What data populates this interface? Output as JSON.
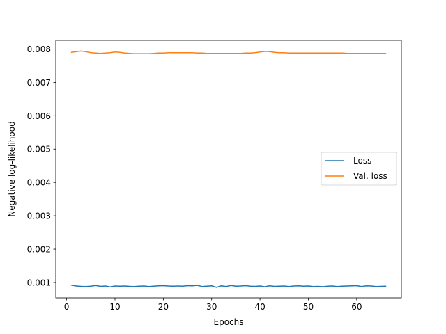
{
  "chart_data": {
    "type": "line",
    "xlabel": "Epochs",
    "ylabel": "Negative log-likelihood",
    "xlim": [
      -2.25,
      69.25
    ],
    "ylim": [
      0.00054,
      0.00826
    ],
    "x_ticks": [
      0,
      10,
      20,
      30,
      40,
      50,
      60
    ],
    "x_tick_labels": [
      "0",
      "10",
      "20",
      "30",
      "40",
      "50",
      "60"
    ],
    "y_ticks": [
      0.001,
      0.002,
      0.003,
      0.004,
      0.005,
      0.006,
      0.007,
      0.008
    ],
    "y_tick_labels": [
      "0.001",
      "0.002",
      "0.003",
      "0.004",
      "0.005",
      "0.006",
      "0.007",
      "0.008"
    ],
    "grid": false,
    "legend_position": "center-right",
    "x": [
      1,
      2,
      3,
      4,
      5,
      6,
      7,
      8,
      9,
      10,
      11,
      12,
      13,
      14,
      15,
      16,
      17,
      18,
      19,
      20,
      21,
      22,
      23,
      24,
      25,
      26,
      27,
      28,
      29,
      30,
      31,
      32,
      33,
      34,
      35,
      36,
      37,
      38,
      39,
      40,
      41,
      42,
      43,
      44,
      45,
      46,
      47,
      48,
      49,
      50,
      51,
      52,
      53,
      54,
      55,
      56,
      57,
      58,
      59,
      60,
      61,
      62,
      63,
      64,
      65,
      66
    ],
    "series": [
      {
        "name": "Loss",
        "color": "#1f77b4",
        "values": [
          0.00092,
          0.000895,
          0.000885,
          0.00088,
          0.00089,
          0.00091,
          0.000885,
          0.000895,
          0.00087,
          0.000895,
          0.00089,
          0.000895,
          0.000885,
          0.00088,
          0.00089,
          0.000895,
          0.00088,
          0.00089,
          0.0009,
          0.000905,
          0.000895,
          0.00089,
          0.000895,
          0.00089,
          0.000905,
          0.0009,
          0.000915,
          0.00088,
          0.00089,
          0.0009,
          0.000855,
          0.0009,
          0.00088,
          0.00091,
          0.00089,
          0.000895,
          0.000905,
          0.00089,
          0.000885,
          0.000895,
          0.000875,
          0.0009,
          0.000885,
          0.00089,
          0.000895,
          0.00088,
          0.000895,
          0.0009,
          0.00089,
          0.000895,
          0.00088,
          0.000885,
          0.000875,
          0.00089,
          0.000895,
          0.00088,
          0.00089,
          0.000895,
          0.0009,
          0.000905,
          0.00088,
          0.0009,
          0.000895,
          0.00088,
          0.000885,
          0.00089
        ]
      },
      {
        "name": "Val. loss",
        "color": "#ff7f0e",
        "values": [
          0.0079,
          0.00792,
          0.00794,
          0.00792,
          0.00789,
          0.00788,
          0.00787,
          0.00788,
          0.00789,
          0.00791,
          0.0079,
          0.00788,
          0.00787,
          0.00786,
          0.00786,
          0.00786,
          0.00786,
          0.00787,
          0.00788,
          0.00788,
          0.00789,
          0.00789,
          0.00789,
          0.00789,
          0.00789,
          0.00789,
          0.00788,
          0.00788,
          0.00787,
          0.00787,
          0.00787,
          0.00787,
          0.00787,
          0.00787,
          0.00787,
          0.00787,
          0.00788,
          0.00788,
          0.00789,
          0.00791,
          0.00793,
          0.00792,
          0.0079,
          0.00789,
          0.00789,
          0.00788,
          0.00788,
          0.00788,
          0.00788,
          0.00788,
          0.00788,
          0.00788,
          0.00788,
          0.00788,
          0.00788,
          0.00788,
          0.00788,
          0.00787,
          0.00787,
          0.00787,
          0.00787,
          0.00787,
          0.00787,
          0.00787,
          0.00787,
          0.00787
        ]
      }
    ]
  }
}
